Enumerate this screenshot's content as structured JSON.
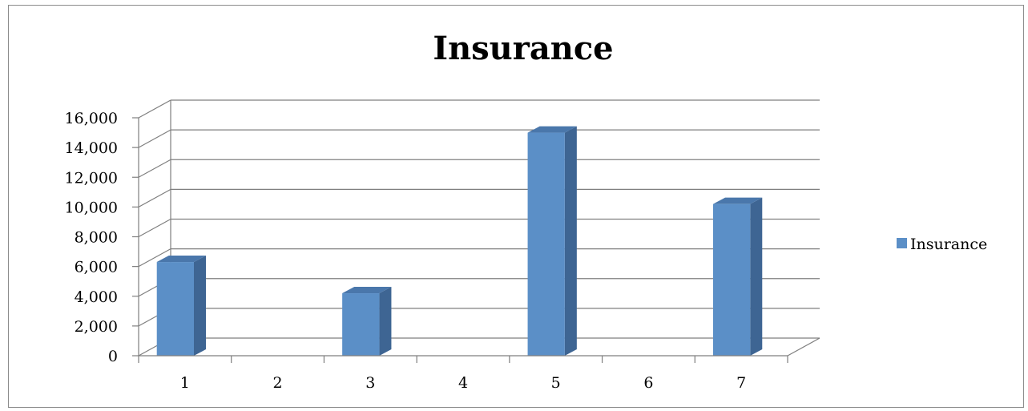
{
  "chart_data": {
    "type": "bar",
    "title": "Insurance",
    "categories": [
      "1",
      "2",
      "3",
      "4",
      "5",
      "6",
      "7"
    ],
    "series": [
      {
        "name": "Insurance",
        "values": [
          6300,
          0,
          4200,
          0,
          15000,
          0,
          10200
        ],
        "color": "#5B8FC7",
        "side_color": "#3E6593",
        "top_color": "#4A77AB"
      }
    ],
    "ylim": [
      0,
      16000
    ],
    "yticks": [
      "0",
      "2,000",
      "4,000",
      "6,000",
      "8,000",
      "10,000",
      "12,000",
      "14,000",
      "16,000"
    ],
    "ytick_step": 2000,
    "grid": true,
    "legend_position": "right",
    "render_3d": true
  }
}
